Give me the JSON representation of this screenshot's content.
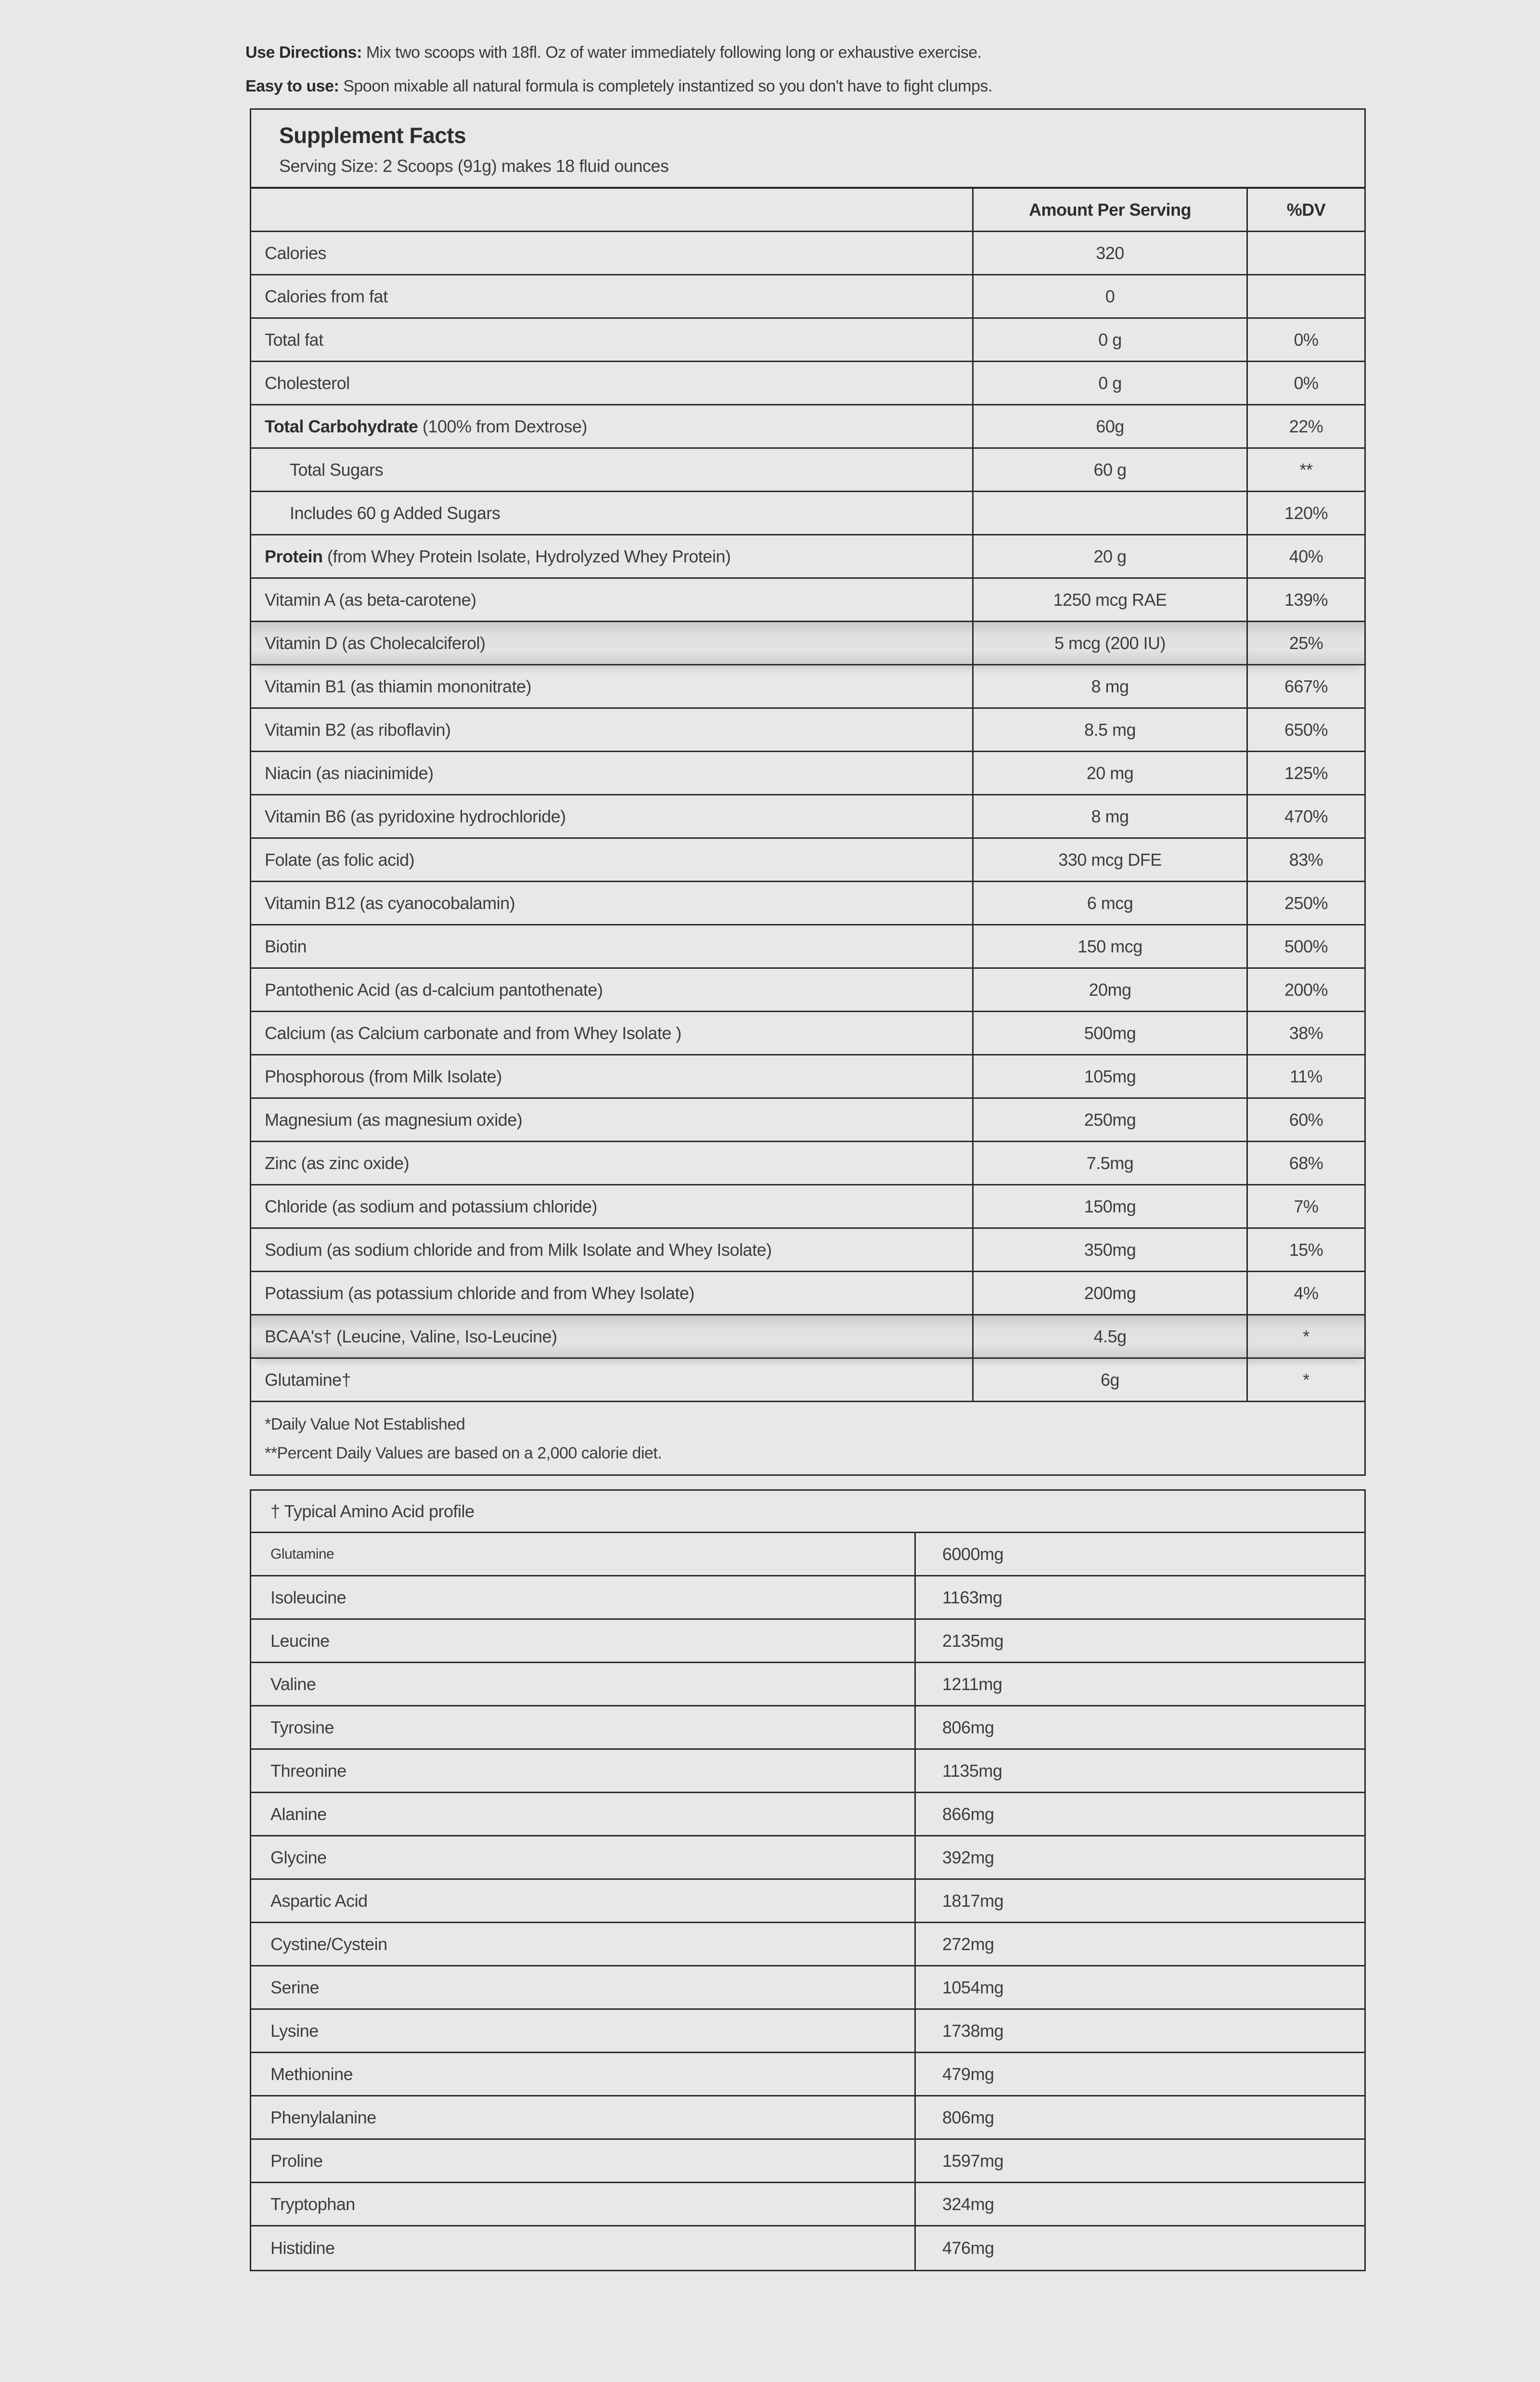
{
  "directions": [
    {
      "label": "Use Directions:",
      "text": " Mix two scoops with 18fl. Oz of water immediately following long or exhaustive exercise."
    },
    {
      "label": "Easy to use:",
      "text": " Spoon mixable all natural formula is completely instantized so you don't have to fight clumps."
    }
  ],
  "supplement_facts": {
    "title": "Supplement Facts",
    "serving_size": "Serving Size: 2 Scoops (91g) makes 18 fluid ounces",
    "columns": {
      "amount": "Amount Per Serving",
      "dv": "%DV"
    },
    "rows": [
      {
        "bold": "",
        "text": "Calories",
        "amount": "320",
        "dv": ""
      },
      {
        "bold": "",
        "text": "Calories from fat",
        "amount": "0",
        "dv": ""
      },
      {
        "bold": "",
        "text": "Total fat",
        "amount": "0 g",
        "dv": "0%"
      },
      {
        "bold": "",
        "text": "Cholesterol",
        "amount": "0 g",
        "dv": "0%"
      },
      {
        "bold": "Total Carbohydrate",
        "text": " (100% from Dextrose)",
        "amount": "60g",
        "dv": "22%"
      },
      {
        "bold": "",
        "text": "Total Sugars",
        "amount": "60 g",
        "dv": "**",
        "indent": true
      },
      {
        "bold": "",
        "text": "Includes 60 g Added Sugars",
        "amount": "",
        "dv": "120%",
        "indent": true
      },
      {
        "bold": "Protein",
        "text": " (from Whey Protein Isolate, Hydrolyzed Whey Protein)",
        "amount": "20 g",
        "dv": "40%"
      },
      {
        "bold": "",
        "text": "Vitamin A (as beta-carotene)",
        "amount": "1250 mcg RAE",
        "dv": "139%"
      },
      {
        "bold": "",
        "text": "Vitamin D (as Cholecalciferol)",
        "amount": "5 mcg (200 IU)",
        "dv": "25%",
        "shaded": true
      },
      {
        "bold": "",
        "text": "Vitamin B1 (as thiamin mononitrate)",
        "amount": "8 mg",
        "dv": "667%"
      },
      {
        "bold": "",
        "text": "Vitamin B2 (as riboflavin)",
        "amount": "8.5 mg",
        "dv": "650%"
      },
      {
        "bold": "",
        "text": "Niacin (as niacinimide)",
        "amount": "20 mg",
        "dv": "125%"
      },
      {
        "bold": "",
        "text": "Vitamin B6 (as pyridoxine hydrochloride)",
        "amount": "8 mg",
        "dv": "470%"
      },
      {
        "bold": "",
        "text": "Folate (as folic acid)",
        "amount": "330 mcg DFE",
        "dv": "83%"
      },
      {
        "bold": "",
        "text": "Vitamin B12 (as cyanocobalamin)",
        "amount": "6 mcg",
        "dv": "250%"
      },
      {
        "bold": "",
        "text": "Biotin",
        "amount": "150 mcg",
        "dv": "500%"
      },
      {
        "bold": "",
        "text": "Pantothenic Acid (as d-calcium pantothenate)",
        "amount": "20mg",
        "dv": "200%"
      },
      {
        "bold": "",
        "text": "Calcium (as Calcium carbonate and from Whey Isolate )",
        "amount": "500mg",
        "dv": "38%"
      },
      {
        "bold": "",
        "text": "Phosphorous (from Milk Isolate)",
        "amount": "105mg",
        "dv": "11%"
      },
      {
        "bold": "",
        "text": "Magnesium (as magnesium oxide)",
        "amount": "250mg",
        "dv": "60%"
      },
      {
        "bold": "",
        "text": "Zinc (as zinc oxide)",
        "amount": "7.5mg",
        "dv": "68%"
      },
      {
        "bold": "",
        "text": "Chloride (as sodium and potassium chloride)",
        "amount": "150mg",
        "dv": "7%"
      },
      {
        "bold": "",
        "text": "Sodium (as sodium chloride and from Milk Isolate and Whey Isolate)",
        "amount": "350mg",
        "dv": "15%"
      },
      {
        "bold": "",
        "text": "Potassium (as potassium chloride and from Whey Isolate)",
        "amount": "200mg",
        "dv": "4%"
      },
      {
        "bold": "",
        "text": "BCAA's† (Leucine, Valine, Iso-Leucine)",
        "amount": "4.5g",
        "dv": "*",
        "shaded": true
      },
      {
        "bold": "",
        "text": "Glutamine†",
        "amount": "6g",
        "dv": "*"
      }
    ],
    "footnotes": [
      "*Daily Value Not Established",
      "**Percent Daily Values are based on a 2,000 calorie diet."
    ]
  },
  "amino_profile": {
    "title": "† Typical Amino Acid profile",
    "rows": [
      {
        "name": "Glutamine",
        "value": "6000mg"
      },
      {
        "name": "Isoleucine",
        "value": "1163mg"
      },
      {
        "name": "Leucine",
        "value": "2135mg"
      },
      {
        "name": "Valine",
        "value": "1211mg"
      },
      {
        "name": "Tyrosine",
        "value": "806mg"
      },
      {
        "name": "Threonine",
        "value": "1135mg"
      },
      {
        "name": "Alanine",
        "value": "866mg"
      },
      {
        "name": "Glycine",
        "value": "392mg"
      },
      {
        "name": "Aspartic Acid",
        "value": "1817mg"
      },
      {
        "name": "Cystine/Cystein",
        "value": "272mg"
      },
      {
        "name": "Serine",
        "value": "1054mg"
      },
      {
        "name": "Lysine",
        "value": "1738mg"
      },
      {
        "name": "Methionine",
        "value": "479mg"
      },
      {
        "name": "Phenylalanine",
        "value": "806mg"
      },
      {
        "name": "Proline",
        "value": "1597mg"
      },
      {
        "name": "Tryptophan",
        "value": "324mg"
      },
      {
        "name": "Histidine",
        "value": "476mg"
      }
    ]
  },
  "colors": {
    "page_background": "#e8e8e6",
    "border": "#2a2a2a",
    "text": "#3d3d3d",
    "shaded_row": "#cfcfcd"
  }
}
